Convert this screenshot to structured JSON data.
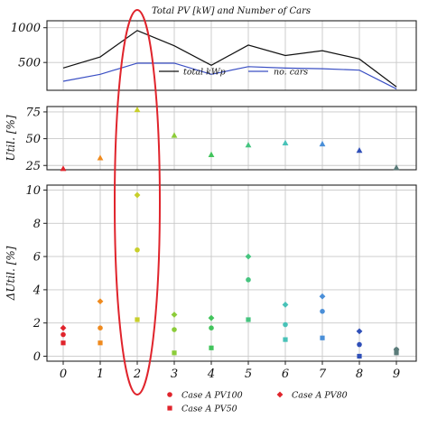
{
  "chart_data": [
    {
      "type": "line",
      "title": "Total PV [kW] and Number of Cars",
      "x": [
        0,
        1,
        2,
        3,
        4,
        5,
        6,
        7,
        8,
        9
      ],
      "yticks": [
        500,
        1000
      ],
      "ylim": [
        100,
        1100
      ],
      "grid": true,
      "series": [
        {
          "name": "total kWp",
          "color": "#111111",
          "values": [
            420,
            580,
            960,
            740,
            460,
            750,
            600,
            670,
            550,
            150
          ]
        },
        {
          "name": "no. cars",
          "color": "#3a4fc4",
          "values": [
            230,
            330,
            490,
            490,
            330,
            440,
            420,
            410,
            390,
            120
          ]
        }
      ],
      "legend_position": "lower-center",
      "legend_entries": [
        "total kWp",
        "no. cars"
      ]
    },
    {
      "type": "scatter",
      "ylabel": "Util. [%]",
      "yticks": [
        25,
        50,
        75
      ],
      "ylim": [
        21,
        80
      ],
      "grid": true,
      "marker": "triangle",
      "points": [
        {
          "x": 0,
          "y": 22,
          "color": "#e0242c"
        },
        {
          "x": 1,
          "y": 32,
          "color": "#ef8a1e"
        },
        {
          "x": 2,
          "y": 77,
          "color": "#c8cf2a"
        },
        {
          "x": 3,
          "y": 53,
          "color": "#8ccc3a"
        },
        {
          "x": 4,
          "y": 35,
          "color": "#42c45c"
        },
        {
          "x": 5,
          "y": 44,
          "color": "#45c47f"
        },
        {
          "x": 6,
          "y": 46,
          "color": "#48c2b8"
        },
        {
          "x": 7,
          "y": 45,
          "color": "#4a8fd8"
        },
        {
          "x": 8,
          "y": 39,
          "color": "#2f4fb8"
        },
        {
          "x": 9,
          "y": 23,
          "color": "#5b7c7a"
        }
      ]
    },
    {
      "type": "scatter",
      "ylabel": "ΔUtil. [%]",
      "yticks": [
        0,
        2,
        4,
        6,
        8,
        10
      ],
      "ylim": [
        -0.3,
        10.3
      ],
      "xticks": [
        "0",
        "1",
        "2",
        "3",
        "4",
        "5",
        "6",
        "7",
        "8",
        "9"
      ],
      "grid": true,
      "colors": [
        "#e0242c",
        "#ef8a1e",
        "#c8cf2a",
        "#8ccc3a",
        "#42c45c",
        "#45c47f",
        "#48c2b8",
        "#4a8fd8",
        "#2f4fb8",
        "#5b7c7a"
      ],
      "series": [
        {
          "name": "Case A PV100",
          "marker": "circle",
          "values": [
            1.3,
            1.7,
            6.4,
            1.6,
            1.7,
            4.6,
            1.9,
            2.7,
            0.7,
            0.4
          ]
        },
        {
          "name": "Case A PV80",
          "marker": "diamond",
          "values": [
            1.7,
            3.3,
            9.7,
            2.5,
            2.3,
            6.0,
            3.1,
            3.6,
            1.5,
            0.4
          ]
        },
        {
          "name": "Case A PV50",
          "marker": "square",
          "values": [
            0.8,
            0.8,
            2.2,
            0.2,
            0.5,
            2.2,
            1.0,
            1.1,
            0.0,
            0.2
          ]
        }
      ]
    }
  ],
  "legend": {
    "entries": [
      {
        "label": "Case A PV100",
        "marker": "circle"
      },
      {
        "label": "Case A PV80",
        "marker": "diamond"
      },
      {
        "label": "Case A PV50",
        "marker": "square"
      }
    ],
    "color": "#e0242c"
  },
  "highlight": {
    "category": 2,
    "color": "#e0242c"
  }
}
